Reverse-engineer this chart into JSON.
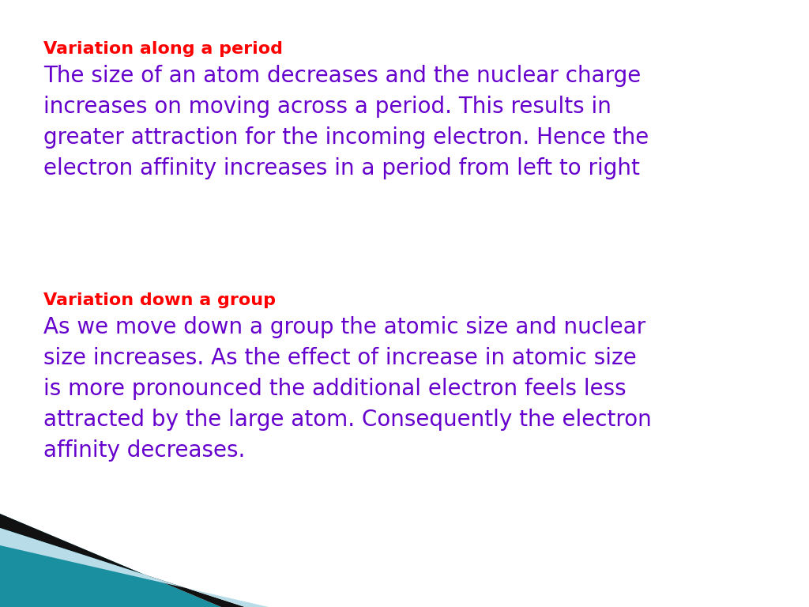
{
  "bg_color": "#ffffff",
  "heading1": "Variation along a period",
  "heading1_color": "#ff0000",
  "body1": "The size of an atom decreases and the nuclear charge\nincreases on moving across a period. This results in\ngreater attraction for the incoming electron. Hence the\nelectron affinity increases in a period from left to right",
  "body1_color": "#6600cc",
  "heading2": "Variation down a group",
  "heading2_color": "#ff0000",
  "body2": "As we move down a group the atomic size and nuclear\nsize increases. As the effect of increase in atomic size\nis more pronounced the additional electron feels less\nattracted by the large atom. Consequently the electron\naffinity decreases.",
  "body2_color": "#6600cc",
  "heading_fontsize": 16,
  "body_fontsize": 20,
  "corner_teal": "#1a8fa0",
  "corner_black": "#111111",
  "corner_lightblue": "#b8dde8"
}
